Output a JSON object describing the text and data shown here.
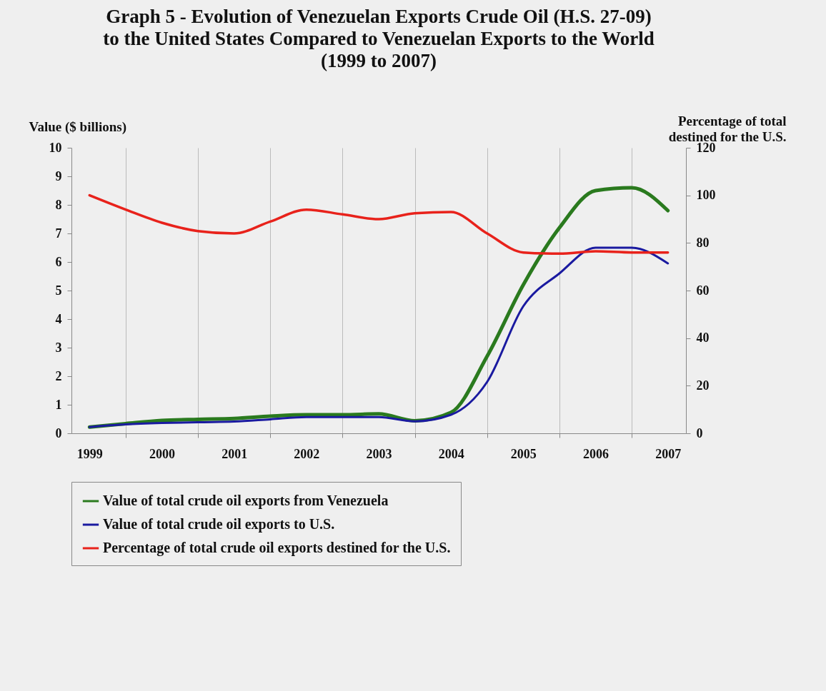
{
  "chart_data": {
    "type": "line",
    "title": "Graph 5 - Evolution of Venezuelan Exports Crude Oil (H.S. 27-09) to the United States Compared to Venezuelan Exports to the World (1999 to 2007)",
    "ylabel": "Value ($ billions)",
    "y2label": "Percentage of total destined for the U.S.",
    "categories": [
      "1999",
      null,
      "2000",
      null,
      "2001",
      null,
      "2002",
      null,
      "2003",
      null,
      "2004",
      null,
      "2005",
      null,
      "2006",
      null,
      "2007"
    ],
    "series": [
      {
        "name": "Value of total crude oil exports from Venezuela",
        "color": "#2a7a1e",
        "values": [
          0.22,
          0.34,
          0.45,
          0.49,
          0.52,
          0.6,
          0.65,
          0.65,
          0.68,
          0.44,
          0.73,
          2.7,
          5.2,
          7.2,
          8.5,
          8.6,
          7.8
        ]
      },
      {
        "name": "Value of total crude oil exports to U.S.",
        "color": "#1a1aa0",
        "values": [
          0.22,
          0.31,
          0.36,
          0.39,
          0.41,
          0.49,
          0.57,
          0.57,
          0.57,
          0.42,
          0.65,
          1.8,
          4.45,
          5.6,
          6.5,
          6.5,
          5.95
        ]
      },
      {
        "name": "Percentage of total crude oil exports destined for the U.S.",
        "color": "#e8221b",
        "axis": "y2",
        "values": [
          100,
          94,
          88.5,
          85,
          84,
          89,
          94,
          92,
          90,
          92.5,
          93,
          84,
          76,
          75.5,
          76.5,
          76,
          76
        ]
      }
    ],
    "ylim": [
      0,
      10
    ],
    "yticks": [
      0,
      1,
      2,
      3,
      4,
      5,
      6,
      7,
      8,
      9,
      10
    ],
    "y2lim": [
      0,
      120
    ],
    "y2ticks": [
      0,
      20,
      40,
      60,
      80,
      100,
      120
    ],
    "grid": "x",
    "legend": "bottom",
    "line_style": "solid"
  }
}
